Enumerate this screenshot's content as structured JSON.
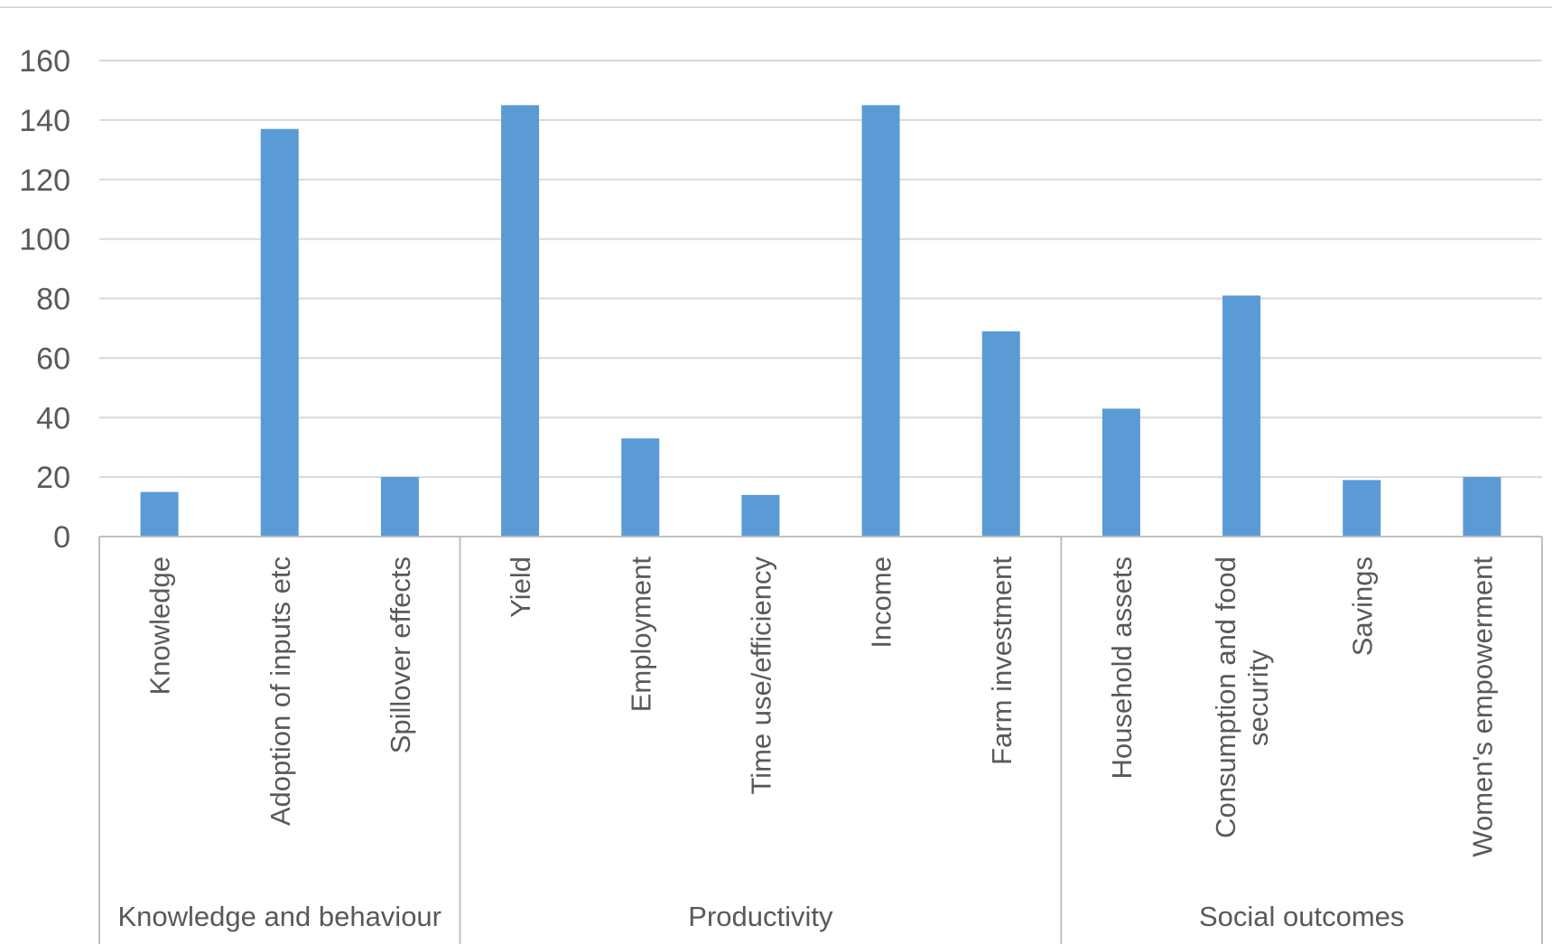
{
  "chart_data": {
    "type": "bar",
    "title": "",
    "xlabel": "",
    "ylabel": "",
    "ylim": [
      0,
      160
    ],
    "yticks": [
      0,
      20,
      40,
      60,
      80,
      100,
      120,
      140,
      160
    ],
    "grid": true,
    "legend": "none",
    "colors": {
      "bar": "#5b9bd5",
      "grid": "#d9d9d9",
      "text": "#595959"
    },
    "groups": [
      {
        "label": "Knowledge and behaviour",
        "categories": [
          {
            "label": [
              "Knowledge"
            ],
            "value": 15
          },
          {
            "label": [
              "Adoption of inputs etc"
            ],
            "value": 137
          },
          {
            "label": [
              "Spillover effects"
            ],
            "value": 20
          }
        ]
      },
      {
        "label": "Productivity",
        "categories": [
          {
            "label": [
              "Yield"
            ],
            "value": 145
          },
          {
            "label": [
              "Employment"
            ],
            "value": 33
          },
          {
            "label": [
              "Time use/efficiency"
            ],
            "value": 14
          },
          {
            "label": [
              "Income"
            ],
            "value": 145
          },
          {
            "label": [
              "Farm investment"
            ],
            "value": 69
          }
        ]
      },
      {
        "label": "Social outcomes",
        "categories": [
          {
            "label": [
              "Household assets"
            ],
            "value": 43
          },
          {
            "label": [
              "Consumption and food",
              "security"
            ],
            "value": 81
          },
          {
            "label": [
              "Savings"
            ],
            "value": 19
          },
          {
            "label": [
              "Women's empowerment"
            ],
            "value": 20
          }
        ]
      }
    ]
  }
}
